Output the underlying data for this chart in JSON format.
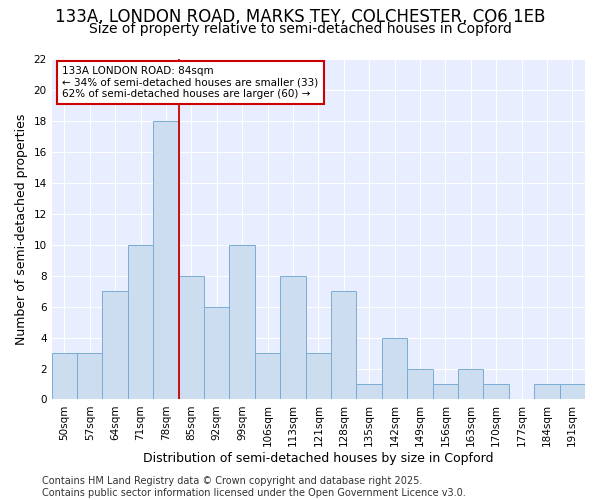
{
  "title1": "133A, LONDON ROAD, MARKS TEY, COLCHESTER, CO6 1EB",
  "title2": "Size of property relative to semi-detached houses in Copford",
  "xlabel": "Distribution of semi-detached houses by size in Copford",
  "ylabel": "Number of semi-detached properties",
  "categories": [
    "50sqm",
    "57sqm",
    "64sqm",
    "71sqm",
    "78sqm",
    "85sqm",
    "92sqm",
    "99sqm",
    "106sqm",
    "113sqm",
    "121sqm",
    "128sqm",
    "135sqm",
    "142sqm",
    "149sqm",
    "156sqm",
    "163sqm",
    "170sqm",
    "177sqm",
    "184sqm",
    "191sqm"
  ],
  "values": [
    3,
    3,
    7,
    10,
    18,
    8,
    6,
    10,
    3,
    8,
    3,
    7,
    1,
    4,
    2,
    1,
    2,
    1,
    0,
    1,
    1
  ],
  "bar_color": "#ccddf0",
  "bar_edge_color": "#7aadd4",
  "ref_line_x": 4.5,
  "ref_line_color": "#cc0000",
  "annotation_text": "133A LONDON ROAD: 84sqm\n← 34% of semi-detached houses are smaller (33)\n62% of semi-detached houses are larger (60) →",
  "annotation_box_facecolor": "#ffffff",
  "annotation_box_edgecolor": "#cc0000",
  "ylim": [
    0,
    22
  ],
  "yticks": [
    0,
    2,
    4,
    6,
    8,
    10,
    12,
    14,
    16,
    18,
    20,
    22
  ],
  "footer": "Contains HM Land Registry data © Crown copyright and database right 2025.\nContains public sector information licensed under the Open Government Licence v3.0.",
  "bg_color": "#ffffff",
  "plot_bg_color": "#e8eeff",
  "grid_color": "#ffffff",
  "title1_fontsize": 12,
  "title2_fontsize": 10,
  "axis_label_fontsize": 9,
  "tick_fontsize": 7.5,
  "annotation_fontsize": 7.5,
  "footer_fontsize": 7
}
